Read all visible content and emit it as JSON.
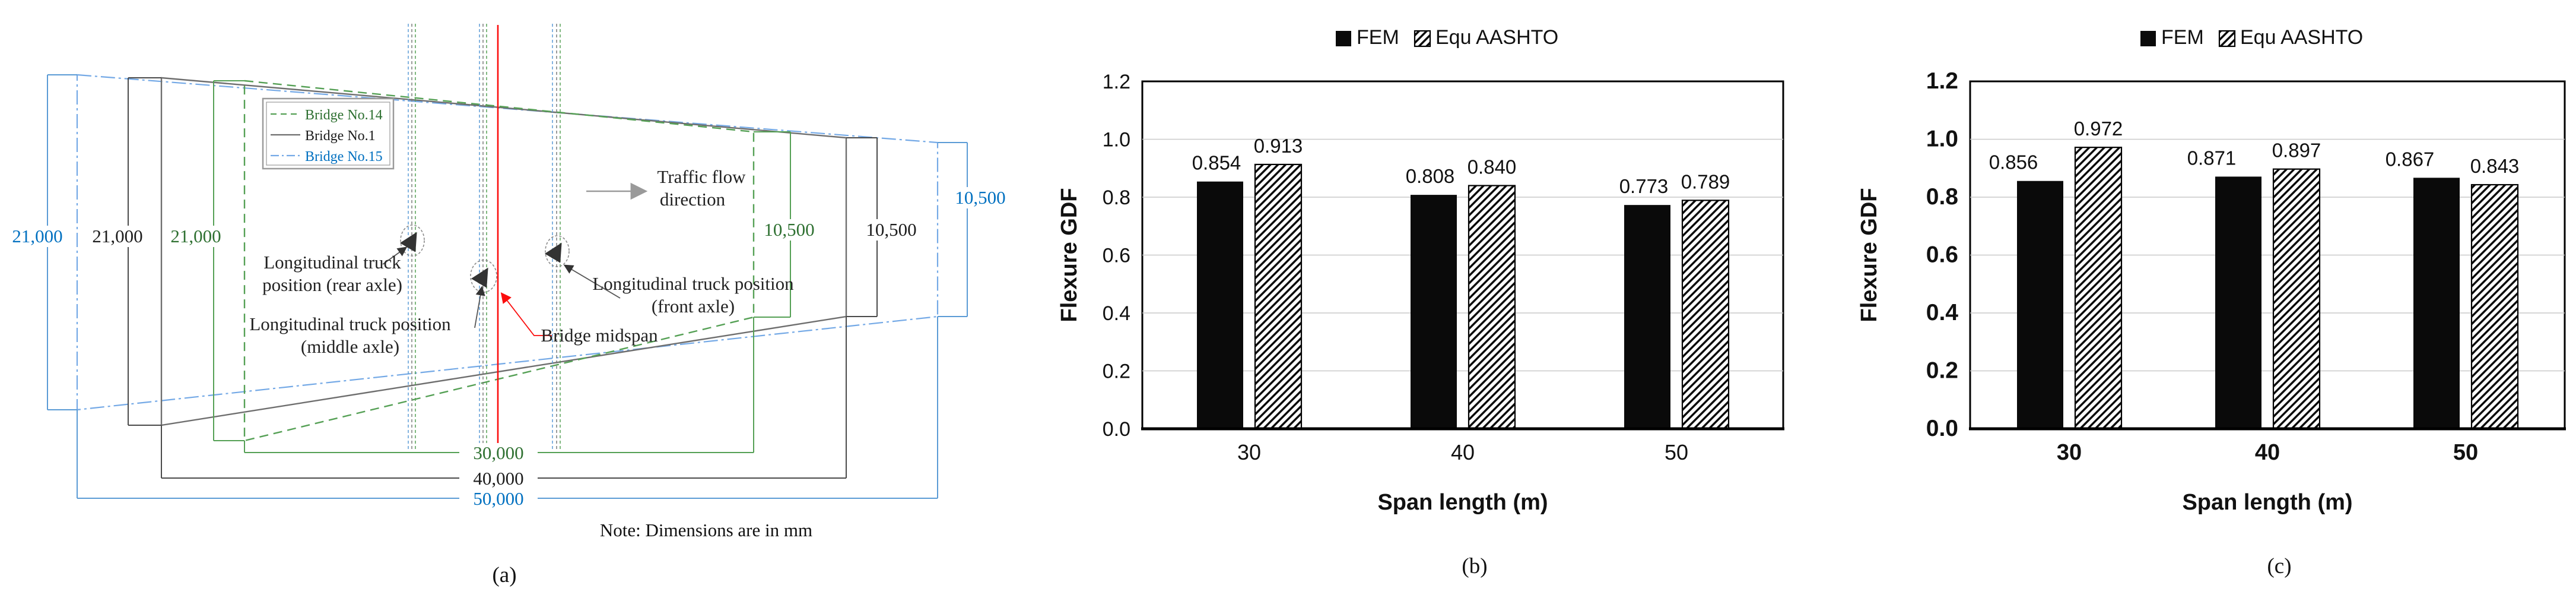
{
  "diagram": {
    "caption": "(a)",
    "legend": {
      "items": [
        {
          "label": "Bridge No.14",
          "color": "#2e7031",
          "line_style": "dashed"
        },
        {
          "label": "Bridge No.1",
          "color": "#1c1c1c",
          "line_style": "solid"
        },
        {
          "label": "Bridge No.15",
          "color": "#0070C0",
          "line_style": "dash-dot"
        }
      ]
    },
    "dim_left_blue": "21,000",
    "dim_left_black": "21,000",
    "dim_left_green": "21,000",
    "dim_right_green": "10,500",
    "dim_right_black": "10,500",
    "dim_right_blue": "10,500",
    "dim_bottom_green": "30,000",
    "dim_bottom_black": "40,000",
    "dim_bottom_blue": "50,000",
    "ann": {
      "rear1": "Longitudinal truck",
      "rear2": "position (rear axle)",
      "middle1": "Longitudinal truck position",
      "middle2": "(middle axle)",
      "front1": "Longitudinal truck position",
      "front2": "(front axle)",
      "midspan": "Bridge midspan",
      "traffic1": "Traffic flow",
      "traffic2": "direction",
      "note": "Note: Dimensions are in mm"
    },
    "colors": {
      "bridge_no14_green": "#2e7031",
      "bridge_no1_gray": "#6e6e6e",
      "bridge_no15_blue": "#0070C0",
      "midspan_red": "#fb0d0d"
    }
  },
  "chart_data": [
    {
      "id": "b",
      "type": "bar",
      "title": "",
      "categories": [
        "30",
        "40",
        "50"
      ],
      "series": [
        {
          "name": "FEM",
          "fill": "solid-black",
          "values": [
            0.854,
            0.808,
            0.773
          ]
        },
        {
          "name": "Equ AASHTO",
          "fill": "diagonal-hatch",
          "values": [
            0.913,
            0.84,
            0.789
          ]
        }
      ],
      "xlabel": "Span length (m)",
      "ylabel": "Flexure GDF",
      "ylim": [
        0.0,
        1.2
      ],
      "ytick_step": 0.2,
      "grid": true,
      "legend_position": "top",
      "caption": "(b)"
    },
    {
      "id": "c",
      "type": "bar",
      "title": "",
      "categories": [
        "30",
        "40",
        "50"
      ],
      "series": [
        {
          "name": "FEM",
          "fill": "solid-black",
          "values": [
            0.856,
            0.871,
            0.867
          ]
        },
        {
          "name": "Equ AASHTO",
          "fill": "diagonal-hatch",
          "values": [
            0.972,
            0.897,
            0.843
          ]
        }
      ],
      "xlabel": "Span length (m)",
      "ylabel": "Flexure GDF",
      "ylim": [
        0.0,
        1.2
      ],
      "ytick_step": 0.2,
      "grid": true,
      "legend_position": "top",
      "caption": "(c)"
    }
  ]
}
